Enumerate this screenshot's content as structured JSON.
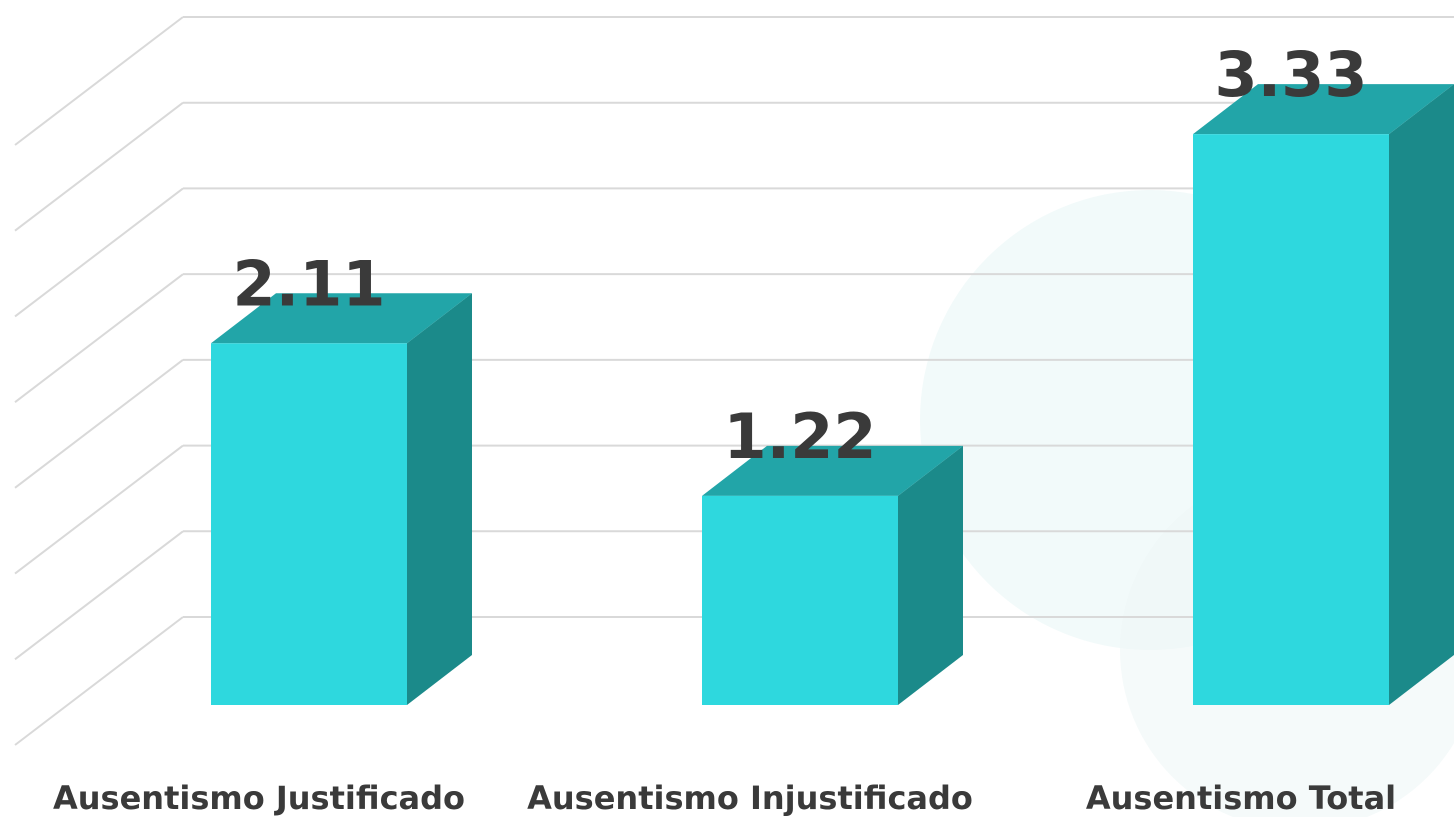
{
  "chart_data": {
    "type": "bar3d",
    "categories": [
      "Ausentismo Justificado",
      "Ausentismo Injustificado",
      "Ausentismo Total"
    ],
    "values": [
      2.11,
      1.22,
      3.33
    ],
    "colors": {
      "front": "#2ed8de",
      "side": "#1b8a8a",
      "top": "#22a5a8"
    },
    "ylim": [
      0,
      3.5
    ],
    "yticks": [
      0,
      0.5,
      1,
      1.5,
      2,
      2.5,
      3,
      3.5
    ],
    "grid": true
  }
}
